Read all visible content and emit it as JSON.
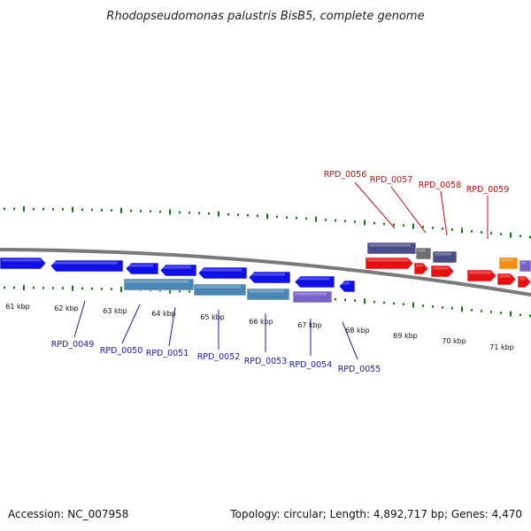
{
  "title": "Rhodopseudomonas palustris BisB5, complete genome",
  "footer": {
    "accession": "Accession: NC_007958",
    "topology": "Topology: circular; Length: 4,892,717 bp; Genes: 4,470"
  },
  "colors": {
    "blue": "#1010e6",
    "steel": "#4a86b4",
    "purple": "#7a62c8",
    "slate": "#4a4e88",
    "gray": "#6e6e6e",
    "red": "#e61010",
    "orange": "#f08c10",
    "backbone": "#7a7a7a",
    "tick": "#0a7a0a",
    "label_blue": "#1a1ab4",
    "label_red": "#c01010"
  },
  "kbp_labels": [
    "61 kbp",
    "62 kbp",
    "63 kbp",
    "64 kbp",
    "65 kbp",
    "66 kbp",
    "67 kbp",
    "68 kbp",
    "69 kbp",
    "70 kbp",
    "71 kbp"
  ],
  "gene_labels_below": [
    "RPD_0049",
    "RPD_0050",
    "RPD_0051",
    "RPD_0052",
    "RPD_0053",
    "RPD_0054",
    "RPD_0055"
  ],
  "gene_labels_above": [
    "RPD_0056",
    "RPD_0057",
    "RPD_0058",
    "RPD_0059"
  ]
}
